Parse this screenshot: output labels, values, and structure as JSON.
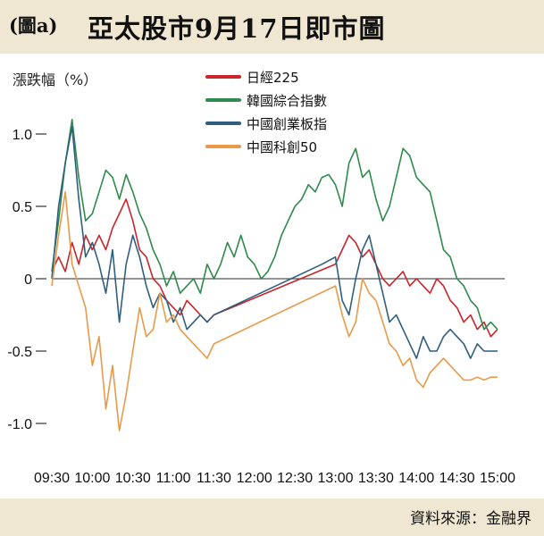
{
  "header": {
    "figure_tag": "(圖a)",
    "title": "亞太股市9月17日即市圖"
  },
  "footer": {
    "source": "資料來源：金融界"
  },
  "chart_data": {
    "type": "line",
    "ylabel": "漲跌幅（%）",
    "ylim": [
      -1.2,
      1.2
    ],
    "yticks": [
      1.0,
      0.5,
      0,
      -0.5,
      -1.0
    ],
    "ytick_labels": [
      "1.0",
      "0.5",
      "0",
      "-0.5",
      "-1.0"
    ],
    "x_tick_labels": [
      "09:30",
      "10:00",
      "10:30",
      "11:00",
      "11:30",
      "12:00",
      "12:30",
      "13:00",
      "13:30",
      "14:00",
      "14:30",
      "15:00"
    ],
    "x_tick_minutes": [
      570,
      600,
      630,
      660,
      690,
      720,
      750,
      780,
      810,
      840,
      870,
      900
    ],
    "xlim": [
      570,
      900
    ],
    "grid": false,
    "legend_position": "top-center",
    "series": [
      {
        "name": "日經225",
        "color": "#c8252c",
        "points": [
          [
            570,
            0.05
          ],
          [
            575,
            0.15
          ],
          [
            580,
            0.05
          ],
          [
            585,
            0.25
          ],
          [
            590,
            0.1
          ],
          [
            595,
            0.3
          ],
          [
            600,
            0.2
          ],
          [
            605,
            0.3
          ],
          [
            610,
            0.2
          ],
          [
            615,
            0.35
          ],
          [
            620,
            0.45
          ],
          [
            625,
            0.55
          ],
          [
            630,
            0.4
          ],
          [
            635,
            0.2
          ],
          [
            640,
            0.15
          ],
          [
            645,
            0.0
          ],
          [
            650,
            -0.05
          ],
          [
            655,
            -0.15
          ],
          [
            660,
            -0.2
          ],
          [
            665,
            -0.25
          ],
          [
            670,
            -0.15
          ],
          [
            675,
            -0.2
          ],
          [
            680,
            -0.25
          ],
          [
            685,
            -0.3
          ],
          [
            690,
            -0.25
          ],
          [
            780,
            0.1
          ],
          [
            785,
            0.2
          ],
          [
            790,
            0.3
          ],
          [
            795,
            0.25
          ],
          [
            800,
            0.15
          ],
          [
            805,
            0.2
          ],
          [
            810,
            0.1
          ],
          [
            815,
            0.0
          ],
          [
            820,
            -0.05
          ],
          [
            825,
            0.0
          ],
          [
            830,
            0.05
          ],
          [
            835,
            -0.05
          ],
          [
            840,
            0.0
          ],
          [
            845,
            -0.05
          ],
          [
            850,
            -0.1
          ],
          [
            855,
            0.0
          ],
          [
            860,
            -0.05
          ],
          [
            865,
            -0.15
          ],
          [
            870,
            -0.2
          ],
          [
            875,
            -0.3
          ],
          [
            880,
            -0.25
          ],
          [
            885,
            -0.35
          ],
          [
            890,
            -0.3
          ],
          [
            895,
            -0.4
          ],
          [
            900,
            -0.35
          ]
        ]
      },
      {
        "name": "韓國綜合指數",
        "color": "#2e8b4a",
        "points": [
          [
            570,
            0.05
          ],
          [
            575,
            0.4
          ],
          [
            580,
            0.8
          ],
          [
            585,
            1.1
          ],
          [
            590,
            0.7
          ],
          [
            595,
            0.4
          ],
          [
            600,
            0.45
          ],
          [
            605,
            0.6
          ],
          [
            610,
            0.75
          ],
          [
            615,
            0.7
          ],
          [
            620,
            0.55
          ],
          [
            625,
            0.72
          ],
          [
            630,
            0.6
          ],
          [
            635,
            0.45
          ],
          [
            640,
            0.35
          ],
          [
            645,
            0.2
          ],
          [
            650,
            0.1
          ],
          [
            655,
            -0.05
          ],
          [
            660,
            0.05
          ],
          [
            665,
            -0.1
          ],
          [
            670,
            -0.05
          ],
          [
            675,
            0.0
          ],
          [
            680,
            -0.1
          ],
          [
            685,
            0.1
          ],
          [
            690,
            0.0
          ],
          [
            695,
            0.1
          ],
          [
            700,
            0.25
          ],
          [
            705,
            0.15
          ],
          [
            710,
            0.3
          ],
          [
            715,
            0.15
          ],
          [
            720,
            0.1
          ],
          [
            725,
            0.0
          ],
          [
            730,
            0.05
          ],
          [
            735,
            0.15
          ],
          [
            740,
            0.3
          ],
          [
            745,
            0.4
          ],
          [
            750,
            0.5
          ],
          [
            755,
            0.55
          ],
          [
            760,
            0.65
          ],
          [
            765,
            0.6
          ],
          [
            770,
            0.7
          ],
          [
            775,
            0.72
          ],
          [
            780,
            0.65
          ],
          [
            785,
            0.5
          ],
          [
            790,
            0.8
          ],
          [
            795,
            0.9
          ],
          [
            800,
            0.7
          ],
          [
            805,
            0.75
          ],
          [
            810,
            0.55
          ],
          [
            815,
            0.4
          ],
          [
            820,
            0.5
          ],
          [
            825,
            0.7
          ],
          [
            830,
            0.9
          ],
          [
            835,
            0.85
          ],
          [
            840,
            0.7
          ],
          [
            845,
            0.65
          ],
          [
            850,
            0.6
          ],
          [
            855,
            0.4
          ],
          [
            860,
            0.2
          ],
          [
            865,
            0.15
          ],
          [
            870,
            0.0
          ],
          [
            875,
            -0.05
          ],
          [
            880,
            -0.15
          ],
          [
            885,
            -0.2
          ],
          [
            890,
            -0.35
          ],
          [
            895,
            -0.3
          ],
          [
            900,
            -0.35
          ]
        ]
      },
      {
        "name": "中國創業板指",
        "color": "#2f5f7e",
        "points": [
          [
            570,
            0.0
          ],
          [
            575,
            0.5
          ],
          [
            580,
            0.8
          ],
          [
            585,
            1.05
          ],
          [
            590,
            0.55
          ],
          [
            595,
            0.15
          ],
          [
            600,
            0.25
          ],
          [
            605,
            0.1
          ],
          [
            610,
            -0.1
          ],
          [
            615,
            0.2
          ],
          [
            620,
            -0.3
          ],
          [
            625,
            0.1
          ],
          [
            630,
            0.3
          ],
          [
            635,
            0.15
          ],
          [
            640,
            -0.05
          ],
          [
            645,
            -0.2
          ],
          [
            650,
            -0.1
          ],
          [
            655,
            -0.15
          ],
          [
            660,
            -0.3
          ],
          [
            665,
            -0.2
          ],
          [
            670,
            -0.35
          ],
          [
            675,
            -0.3
          ],
          [
            680,
            -0.25
          ],
          [
            685,
            -0.3
          ],
          [
            690,
            -0.25
          ],
          [
            770,
            0.1
          ],
          [
            780,
            0.15
          ],
          [
            785,
            -0.15
          ],
          [
            790,
            -0.25
          ],
          [
            795,
            0.0
          ],
          [
            800,
            0.2
          ],
          [
            805,
            0.3
          ],
          [
            810,
            0.1
          ],
          [
            815,
            -0.1
          ],
          [
            820,
            -0.3
          ],
          [
            825,
            -0.25
          ],
          [
            830,
            -0.35
          ],
          [
            835,
            -0.45
          ],
          [
            840,
            -0.55
          ],
          [
            845,
            -0.4
          ],
          [
            850,
            -0.5
          ],
          [
            855,
            -0.5
          ],
          [
            860,
            -0.4
          ],
          [
            865,
            -0.35
          ],
          [
            870,
            -0.4
          ],
          [
            875,
            -0.45
          ],
          [
            880,
            -0.55
          ],
          [
            885,
            -0.45
          ],
          [
            890,
            -0.5
          ],
          [
            895,
            -0.5
          ],
          [
            900,
            -0.5
          ]
        ]
      },
      {
        "name": "中國科創50",
        "color": "#e89a4a",
        "points": [
          [
            570,
            -0.05
          ],
          [
            575,
            0.3
          ],
          [
            580,
            0.6
          ],
          [
            585,
            0.1
          ],
          [
            590,
            -0.05
          ],
          [
            595,
            -0.2
          ],
          [
            600,
            -0.6
          ],
          [
            605,
            -0.4
          ],
          [
            610,
            -0.9
          ],
          [
            615,
            -0.6
          ],
          [
            620,
            -1.05
          ],
          [
            625,
            -0.8
          ],
          [
            630,
            -0.5
          ],
          [
            635,
            -0.2
          ],
          [
            640,
            -0.4
          ],
          [
            645,
            -0.35
          ],
          [
            650,
            -0.1
          ],
          [
            655,
            -0.3
          ],
          [
            660,
            -0.25
          ],
          [
            665,
            -0.35
          ],
          [
            670,
            -0.4
          ],
          [
            675,
            -0.45
          ],
          [
            680,
            -0.5
          ],
          [
            685,
            -0.55
          ],
          [
            690,
            -0.45
          ],
          [
            780,
            -0.05
          ],
          [
            785,
            -0.25
          ],
          [
            790,
            -0.4
          ],
          [
            795,
            -0.3
          ],
          [
            800,
            0.0
          ],
          [
            805,
            -0.1
          ],
          [
            810,
            -0.15
          ],
          [
            815,
            -0.3
          ],
          [
            820,
            -0.45
          ],
          [
            825,
            -0.5
          ],
          [
            830,
            -0.6
          ],
          [
            835,
            -0.55
          ],
          [
            840,
            -0.7
          ],
          [
            845,
            -0.75
          ],
          [
            850,
            -0.65
          ],
          [
            855,
            -0.6
          ],
          [
            860,
            -0.55
          ],
          [
            865,
            -0.6
          ],
          [
            870,
            -0.65
          ],
          [
            875,
            -0.7
          ],
          [
            880,
            -0.7
          ],
          [
            885,
            -0.68
          ],
          [
            890,
            -0.7
          ],
          [
            895,
            -0.68
          ],
          [
            900,
            -0.68
          ]
        ]
      }
    ]
  }
}
